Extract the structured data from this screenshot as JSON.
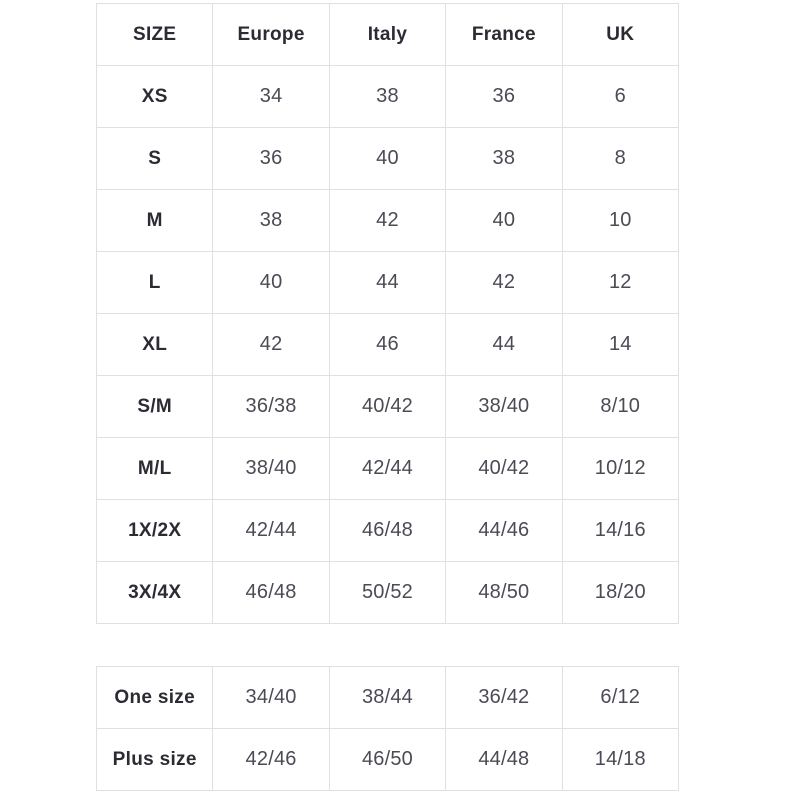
{
  "chart_data": [
    {
      "type": "table",
      "columns": [
        "SIZE",
        "Europe",
        "Italy",
        "France",
        "UK"
      ],
      "rows": [
        [
          "XS",
          "34",
          "38",
          "36",
          "6"
        ],
        [
          "S",
          "36",
          "40",
          "38",
          "8"
        ],
        [
          "M",
          "38",
          "42",
          "40",
          "10"
        ],
        [
          "L",
          "40",
          "44",
          "42",
          "12"
        ],
        [
          "XL",
          "42",
          "46",
          "44",
          "14"
        ],
        [
          "S/M",
          "36/38",
          "40/42",
          "38/40",
          "8/10"
        ],
        [
          "M/L",
          "38/40",
          "42/44",
          "40/42",
          "10/12"
        ],
        [
          "1X/2X",
          "42/44",
          "46/48",
          "44/46",
          "14/16"
        ],
        [
          "3X/4X",
          "46/48",
          "50/52",
          "48/50",
          "18/20"
        ]
      ]
    },
    {
      "type": "table",
      "rows": [
        [
          "One size",
          "34/40",
          "38/44",
          "36/42",
          "6/12"
        ],
        [
          "Plus size",
          "42/46",
          "46/50",
          "44/48",
          "14/18"
        ]
      ]
    }
  ],
  "colors": {
    "background": "#ffffff",
    "border": "#e0e0e0",
    "header_text": "#2b2b33",
    "cell_text": "#4b4b55"
  }
}
